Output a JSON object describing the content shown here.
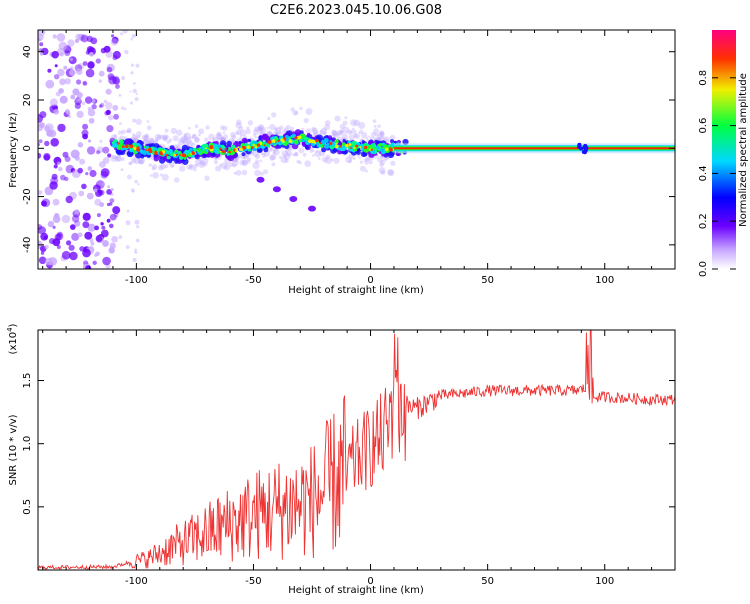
{
  "title": "C2E6.2023.045.10.06.G08",
  "chart_data": [
    {
      "type": "heatmap",
      "xlabel": "Height of straight line (km)",
      "ylabel": "Frequency (Hz)",
      "xlim": [
        -142,
        130
      ],
      "ylim": [
        -50,
        49
      ],
      "xticks": [
        -100,
        -50,
        0,
        50,
        100
      ],
      "xtick_labels": [
        "-100",
        "-50",
        "0",
        "50",
        "100"
      ],
      "yticks": [
        -40,
        -20,
        0,
        20,
        40
      ],
      "ytick_labels": [
        "-40",
        "-20",
        "0",
        "20",
        "40"
      ],
      "colorbar": {
        "label": "Normalized spectral amplitude",
        "range": [
          0,
          1
        ],
        "ticks": [
          0,
          0.2,
          0.4,
          0.6,
          0.8
        ],
        "tick_labels": [
          "0.0",
          "0.2",
          "0.4",
          "0.6",
          "0.8"
        ],
        "colors": [
          "#ffffff",
          "#6a00ff",
          "#0000ff",
          "#00d8ff",
          "#00ff40",
          "#f0f000",
          "#ff3000",
          "#ff0080"
        ]
      },
      "noise_region_x": [
        -142,
        -108
      ],
      "main_ridge": {
        "name": "Main frequency ridge",
        "x": [
          -110,
          -100,
          -90,
          -80,
          -70,
          -60,
          -50,
          -40,
          -30,
          -20,
          -10,
          0,
          10,
          20,
          50,
          90,
          130
        ],
        "y": [
          2,
          0,
          -2,
          -3,
          0,
          -1,
          1,
          3,
          4,
          2,
          1,
          0,
          0,
          0,
          0,
          0,
          0
        ]
      },
      "secondary_trace": {
        "name": "Secondary trace",
        "x": [
          -47,
          -40,
          -33,
          -25
        ],
        "y": [
          -13,
          -17,
          -21,
          -25
        ]
      }
    },
    {
      "type": "line",
      "xlabel": "Height of straight line (km)",
      "ylabel": "SNR (10 * v/v)",
      "scale_label": "(x10",
      "scale_exponent": "4",
      "xlim": [
        -142,
        130
      ],
      "ylim": [
        0,
        19000
      ],
      "xticks": [
        -100,
        -50,
        0,
        50,
        100
      ],
      "xtick_labels": [
        "-100",
        "-50",
        "0",
        "50",
        "100"
      ],
      "yticks": [
        5000,
        10000,
        15000
      ],
      "ytick_labels": [
        "0.5",
        "1.0",
        "1.5"
      ],
      "series": [
        {
          "name": "SNR",
          "color": "#ee3333",
          "x": [
            -142,
            -110,
            -103,
            -95,
            -85,
            -75,
            -65,
            -55,
            -45,
            -35,
            -25,
            -20,
            -15,
            -10,
            -5,
            0,
            5,
            8,
            10,
            11,
            12,
            15,
            20,
            25,
            30,
            40,
            50,
            60,
            70,
            80,
            88,
            92,
            93,
            95,
            100,
            110,
            120,
            130
          ],
          "values": [
            200,
            250,
            600,
            900,
            1800,
            2500,
            3300,
            4000,
            4600,
            5000,
            5500,
            6200,
            7000,
            8000,
            9000,
            9800,
            10500,
            11500,
            14000,
            19000,
            13000,
            13000,
            12800,
            13300,
            13800,
            14000,
            14200,
            14200,
            14200,
            14200,
            14200,
            14400,
            18500,
            13700,
            13700,
            13600,
            13500,
            13500
          ]
        }
      ]
    }
  ]
}
